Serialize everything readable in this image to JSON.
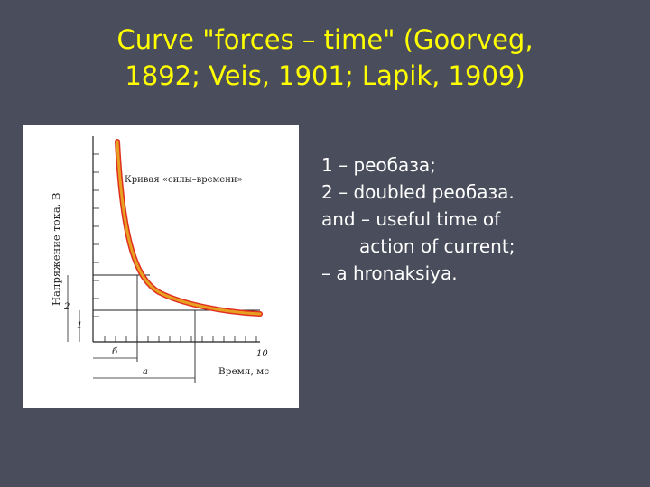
{
  "slide": {
    "title_line1": "Curve \"forces – time\" (Goorveg,",
    "title_line2": "1892; Veis, 1901; Lapik, 1909)"
  },
  "figure": {
    "y_axis_label": "Напряжение тока, В",
    "curve_label": "Кривая «силы–времени»",
    "x_axis_label": "Время, мс",
    "marker_2": "2",
    "marker_1": "1",
    "marker_b": "б",
    "marker_a": "а",
    "marker_10": "10",
    "curve_color": "#e8a020",
    "curve_outline_color": "#e03020"
  },
  "bullets": [
    {
      "text": "1 – реобаза;"
    },
    {
      "text": "2 – doubled реобаза."
    },
    {
      "line1": "and – useful time of",
      "line2": "action of current;"
    },
    {
      "text": "– a hronaksiya."
    }
  ],
  "colors": {
    "background": "#4a4d5b",
    "title": "#ffff00",
    "body_text": "#ffffff"
  }
}
